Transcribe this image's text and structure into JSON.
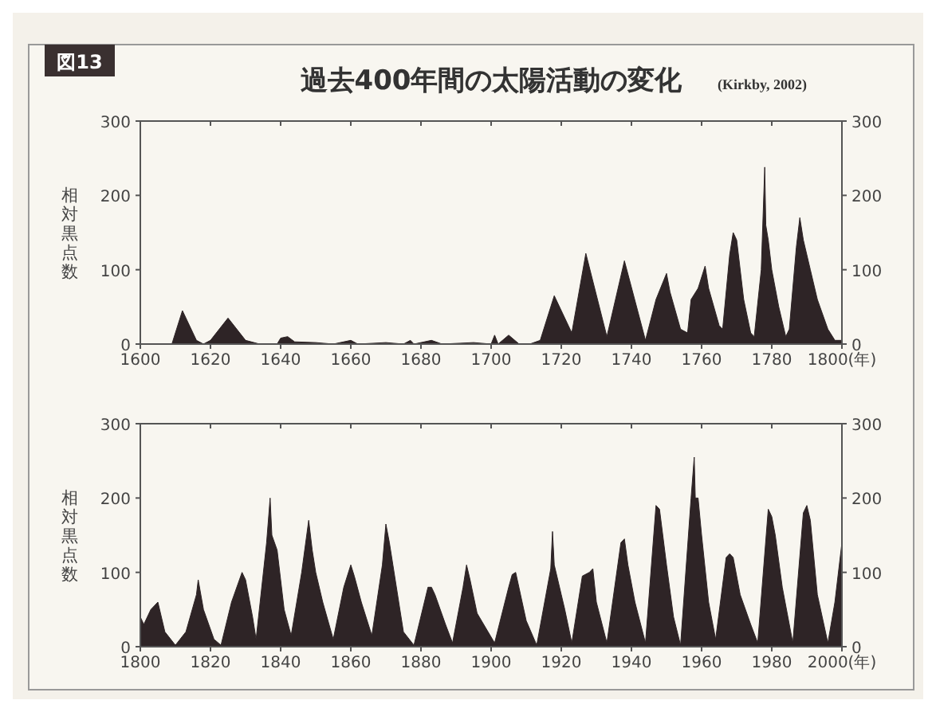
{
  "chart_data": [
    {
      "type": "area",
      "title": "過去400年間の太陽活動の変化",
      "annotations": [
        "図13",
        "(Kirkby, 2002)"
      ],
      "ylabel": "相対黒点数",
      "grid": false,
      "x": [
        1600,
        1609,
        1612,
        1616,
        1618,
        1620,
        1625,
        1630,
        1634,
        1639,
        1640,
        1642,
        1644,
        1650,
        1655,
        1660,
        1662,
        1670,
        1675,
        1677,
        1678,
        1683,
        1686,
        1695,
        1700,
        1701,
        1702,
        1705,
        1708,
        1711,
        1714,
        1718,
        1723,
        1727,
        1733,
        1738,
        1744,
        1747,
        1750,
        1751,
        1754,
        1756,
        1757,
        1759,
        1761,
        1762,
        1765,
        1766,
        1768,
        1769,
        1770,
        1772,
        1774,
        1775,
        1777,
        1778,
        1778.3,
        1779,
        1780,
        1782,
        1784,
        1785,
        1787,
        1788,
        1789,
        1791,
        1793,
        1796,
        1798,
        1800
      ],
      "series": [
        {
          "color": "#2e2426",
          "values": [
            0,
            0,
            45,
            5,
            0,
            5,
            35,
            5,
            0,
            0,
            8,
            10,
            3,
            2,
            0,
            5,
            0,
            2,
            0,
            5,
            0,
            5,
            0,
            2,
            0,
            12,
            0,
            12,
            0,
            0,
            5,
            65,
            15,
            122,
            10,
            112,
            5,
            60,
            95,
            70,
            20,
            15,
            60,
            75,
            105,
            75,
            25,
            20,
            120,
            150,
            140,
            60,
            15,
            10,
            100,
            238,
            160,
            140,
            100,
            50,
            10,
            20,
            130,
            170,
            140,
            100,
            60,
            20,
            5,
            5
          ]
        }
      ],
      "xlim": [
        1600,
        1800
      ],
      "xticks": [
        1600,
        1620,
        1640,
        1660,
        1680,
        1700,
        1720,
        1740,
        1760,
        1780,
        {
          "value": 1800,
          "label": "1800(年)"
        }
      ],
      "ylim": [
        0,
        300
      ],
      "yticks": [
        0,
        100,
        200,
        300
      ],
      "y2lim": [
        0,
        300
      ],
      "y2ticks": [
        0,
        100,
        200,
        300
      ]
    },
    {
      "type": "area",
      "ylabel": "相対黒点数",
      "grid": false,
      "x": [
        1800,
        1801,
        1803,
        1805,
        1807,
        1810,
        1813,
        1816,
        1816.5,
        1818,
        1821,
        1823,
        1826,
        1829,
        1830,
        1832,
        1833,
        1836,
        1837,
        1837.5,
        1839,
        1841,
        1843,
        1846,
        1848,
        1849,
        1850,
        1852,
        1855,
        1858,
        1860,
        1861,
        1863,
        1866,
        1869,
        1870,
        1871,
        1872,
        1875,
        1878,
        1882,
        1883,
        1884,
        1887,
        1889,
        1892,
        1893,
        1894,
        1896,
        1901,
        1905,
        1906,
        1907,
        1910,
        1913,
        1917,
        1917.5,
        1918,
        1920,
        1921,
        1923,
        1926,
        1928,
        1929,
        1930,
        1933,
        1937,
        1938,
        1939,
        1941,
        1944,
        1947,
        1948,
        1950,
        1952,
        1954,
        1957,
        1957.9,
        1958.2,
        1959,
        1960,
        1962,
        1964,
        1967,
        1968,
        1969,
        1971,
        1974,
        1976,
        1979,
        1980,
        1981,
        1983,
        1986,
        1989,
        1990,
        1991,
        1993,
        1996,
        1998,
        2000
      ],
      "series": [
        {
          "color": "#2e2426",
          "values": [
            40,
            30,
            50,
            60,
            20,
            2,
            20,
            70,
            90,
            50,
            10,
            2,
            60,
            100,
            90,
            40,
            10,
            140,
            200,
            150,
            130,
            50,
            15,
            100,
            170,
            130,
            100,
            60,
            10,
            80,
            110,
            95,
            60,
            15,
            110,
            165,
            140,
            110,
            20,
            2,
            80,
            80,
            70,
            30,
            5,
            80,
            110,
            90,
            45,
            5,
            80,
            97,
            100,
            35,
            2,
            105,
            155,
            110,
            70,
            50,
            5,
            95,
            100,
            105,
            60,
            5,
            140,
            145,
            110,
            60,
            5,
            190,
            185,
            110,
            40,
            2,
            200,
            255,
            200,
            200,
            150,
            60,
            10,
            120,
            125,
            120,
            70,
            30,
            5,
            185,
            175,
            150,
            80,
            5,
            180,
            190,
            170,
            70,
            5,
            60,
            140
          ]
        }
      ],
      "xlim": [
        1800,
        2000
      ],
      "xticks": [
        1800,
        1820,
        1840,
        1860,
        1880,
        1900,
        1920,
        1940,
        1960,
        1980,
        {
          "value": 2000,
          "label": "2000(年)"
        }
      ],
      "ylim": [
        0,
        300
      ],
      "yticks": [
        0,
        100,
        200,
        300
      ],
      "y2lim": [
        0,
        300
      ],
      "y2ticks": [
        0,
        100,
        200,
        300
      ]
    }
  ]
}
